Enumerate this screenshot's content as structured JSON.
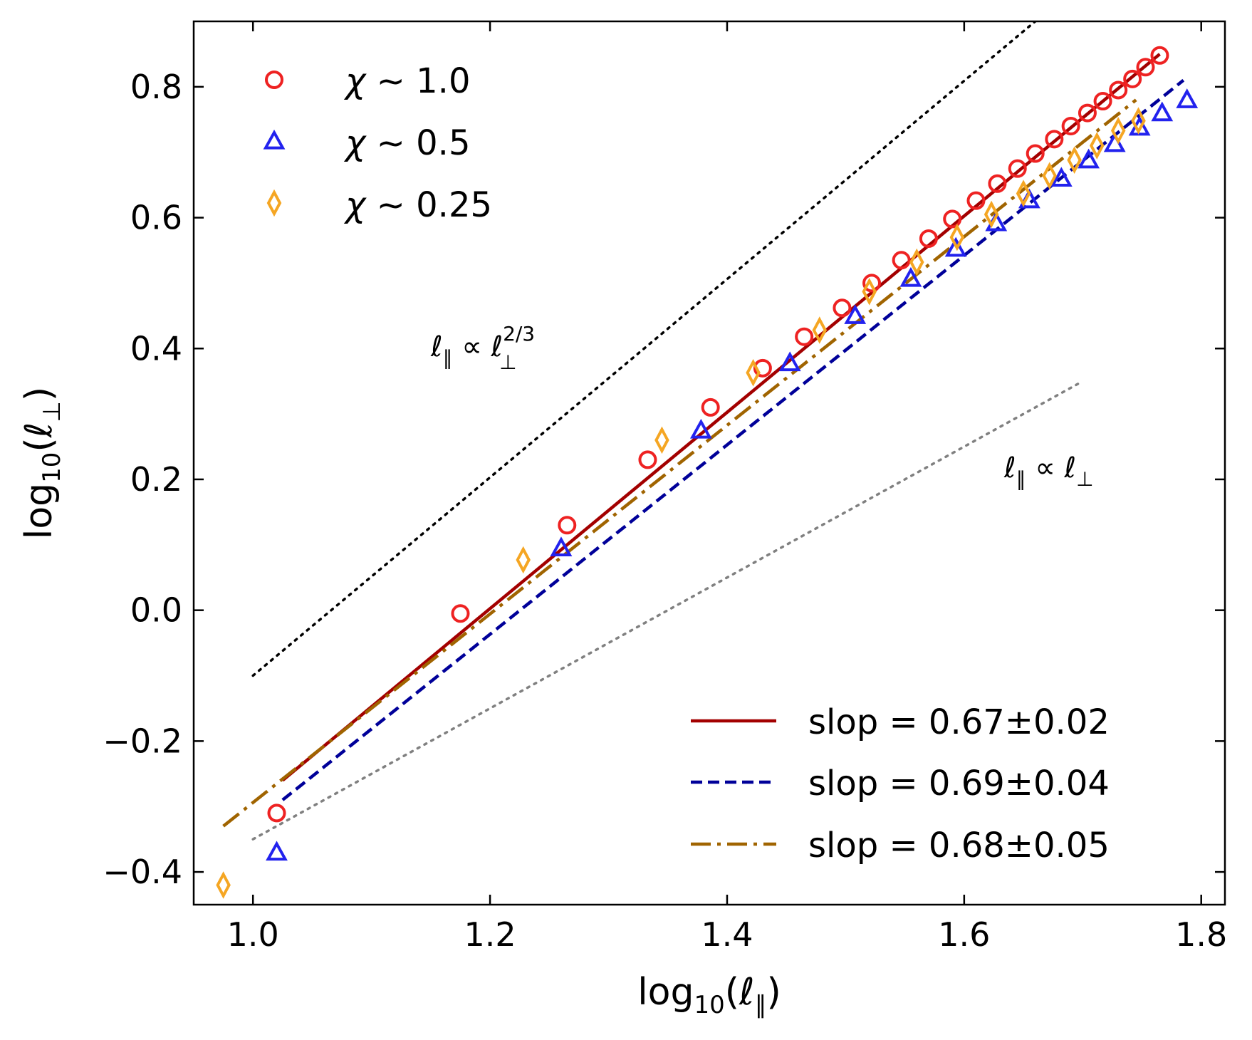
{
  "chart_data": {
    "type": "scatter",
    "xlabel_parts": [
      "log",
      "10",
      "(ℓ",
      "∥",
      ")"
    ],
    "ylabel_parts": [
      "log",
      "10",
      "(ℓ",
      "⊥",
      ")"
    ],
    "xlim": [
      0.95,
      1.82
    ],
    "ylim": [
      -0.45,
      0.9
    ],
    "xticks": [
      1.0,
      1.2,
      1.4,
      1.6,
      1.8
    ],
    "xtick_labels": [
      "1.0",
      "1.2",
      "1.4",
      "1.6",
      "1.8"
    ],
    "yticks": [
      -0.4,
      -0.2,
      0.0,
      0.2,
      0.4,
      0.6,
      0.8
    ],
    "ytick_labels": [
      "−0.4",
      "−0.2",
      "0.0",
      "0.2",
      "0.4",
      "0.6",
      "0.8"
    ],
    "grid": false,
    "series": [
      {
        "name": "χ ~ 1.0",
        "label_parts": [
          "χ",
          " ~ 1.0"
        ],
        "marker": "circle",
        "color": "#ee2222",
        "points": [
          [
            1.02,
            -0.31
          ],
          [
            1.175,
            -0.005
          ],
          [
            1.265,
            0.13
          ],
          [
            1.333,
            0.23
          ],
          [
            1.386,
            0.31
          ],
          [
            1.43,
            0.37
          ],
          [
            1.465,
            0.418
          ],
          [
            1.497,
            0.462
          ],
          [
            1.522,
            0.5
          ],
          [
            1.547,
            0.535
          ],
          [
            1.57,
            0.568
          ],
          [
            1.59,
            0.598
          ],
          [
            1.61,
            0.626
          ],
          [
            1.628,
            0.652
          ],
          [
            1.645,
            0.675
          ],
          [
            1.66,
            0.698
          ],
          [
            1.676,
            0.72
          ],
          [
            1.69,
            0.74
          ],
          [
            1.704,
            0.76
          ],
          [
            1.717,
            0.778
          ],
          [
            1.73,
            0.795
          ],
          [
            1.742,
            0.812
          ],
          [
            1.753,
            0.83
          ],
          [
            1.765,
            0.848
          ]
        ]
      },
      {
        "name": "χ ~ 0.5",
        "label_parts": [
          "χ",
          " ~ 0.5"
        ],
        "marker": "triangle",
        "color": "#2222ee",
        "points": [
          [
            1.02,
            -0.37
          ],
          [
            1.26,
            0.095
          ],
          [
            1.378,
            0.275
          ],
          [
            1.453,
            0.378
          ],
          [
            1.508,
            0.45
          ],
          [
            1.555,
            0.507
          ],
          [
            1.593,
            0.553
          ],
          [
            1.627,
            0.592
          ],
          [
            1.655,
            0.627
          ],
          [
            1.682,
            0.66
          ],
          [
            1.705,
            0.688
          ],
          [
            1.727,
            0.713
          ],
          [
            1.748,
            0.738
          ],
          [
            1.767,
            0.76
          ],
          [
            1.788,
            0.78
          ]
        ]
      },
      {
        "name": "χ ~ 0.25",
        "label_parts": [
          "χ",
          " ~ 0.25"
        ],
        "marker": "diamond",
        "color": "#f5a623",
        "points": [
          [
            0.975,
            -0.42
          ],
          [
            1.228,
            0.077
          ],
          [
            1.345,
            0.26
          ],
          [
            1.422,
            0.363
          ],
          [
            1.478,
            0.428
          ],
          [
            1.52,
            0.487
          ],
          [
            1.56,
            0.532
          ],
          [
            1.594,
            0.57
          ],
          [
            1.623,
            0.605
          ],
          [
            1.65,
            0.637
          ],
          [
            1.672,
            0.664
          ],
          [
            1.693,
            0.688
          ],
          [
            1.712,
            0.71
          ],
          [
            1.73,
            0.733
          ],
          [
            1.747,
            0.748
          ]
        ]
      }
    ],
    "fit_lines": [
      {
        "label": "slop = 0.67±0.02",
        "style": "solid",
        "color": "#a30000",
        "x": [
          1.025,
          1.765
        ],
        "y": [
          -0.26,
          0.85
        ]
      },
      {
        "label": "slop = 0.69±0.04",
        "style": "dashed",
        "color": "#000099",
        "x": [
          1.025,
          1.785
        ],
        "y": [
          -0.29,
          0.81
        ]
      },
      {
        "label": "slop = 0.68±0.05",
        "style": "dashdot",
        "color": "#a06400",
        "x": [
          0.975,
          1.745
        ],
        "y": [
          -0.33,
          0.78
        ]
      }
    ],
    "reference_lines": [
      {
        "name": "two-thirds",
        "color": "#000000",
        "x": [
          1.0,
          1.66
        ],
        "y": [
          -0.1,
          0.9
        ]
      },
      {
        "name": "linear",
        "color": "#808080",
        "x": [
          1.0,
          1.7
        ],
        "y": [
          -0.35,
          0.35
        ]
      }
    ],
    "annotations": [
      {
        "name": "two-thirds-annotation",
        "parts": [
          "ℓ",
          "∥",
          " ∝ ℓ",
          "2/3",
          "⊥"
        ],
        "at": [
          1.155,
          0.39
        ]
      },
      {
        "name": "linear-annotation",
        "parts": [
          "ℓ",
          "∥",
          " ∝ ℓ",
          "⊥"
        ],
        "at": [
          1.635,
          0.2
        ]
      }
    ],
    "legend_scatter_position": "top-left",
    "legend_lines_position": "bottom-right"
  }
}
